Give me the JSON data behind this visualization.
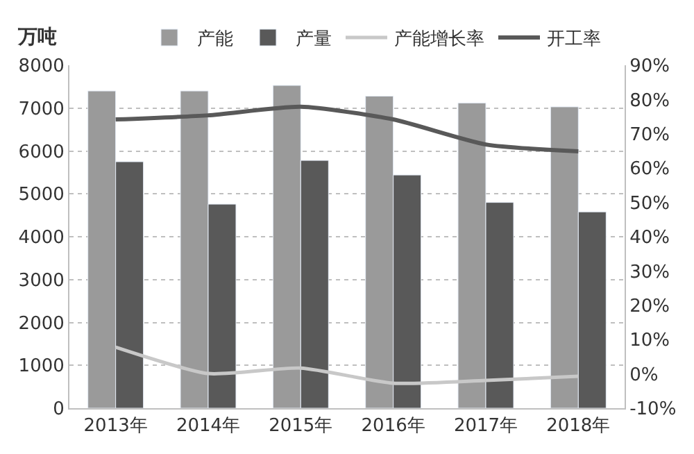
{
  "chart_data": {
    "type": "bar",
    "ylabel": "万吨",
    "categories": [
      "2013年",
      "2014年",
      "2015年",
      "2016年",
      "2017年",
      "2018年"
    ],
    "series": [
      {
        "name": "产能",
        "color": "#9a9a9a",
        "values": [
          7400,
          7400,
          7530,
          7280,
          7120,
          7030
        ]
      },
      {
        "name": "产量",
        "color": "#595959",
        "values": [
          5750,
          4760,
          5780,
          5440,
          4800,
          4580
        ]
      },
      {
        "name": "产能增长率",
        "type": "line",
        "axis": "y2",
        "color": "#c8c8c8",
        "values": [
          7.8,
          0.1,
          1.7,
          -2.7,
          -1.9,
          -0.7
        ]
      },
      {
        "name": "开工率",
        "type": "line",
        "axis": "y2",
        "color": "#595959",
        "values": [
          74.2,
          75.4,
          77.9,
          74.2,
          66.9,
          64.9
        ]
      }
    ],
    "ylim": [
      0,
      8000
    ],
    "yticks": [
      0,
      1000,
      2000,
      3000,
      4000,
      5000,
      6000,
      7000,
      8000
    ],
    "y2lim": [
      -10,
      90
    ],
    "y2ticks": [
      {
        "value": -10,
        "label": "-10%"
      },
      {
        "value": 0,
        "label": "0%"
      },
      {
        "value": 10,
        "label": "10%"
      },
      {
        "value": 20,
        "label": "20%"
      },
      {
        "value": 30,
        "label": "30%"
      },
      {
        "value": 40,
        "label": "40%"
      },
      {
        "value": 50,
        "label": "50%"
      },
      {
        "value": 60,
        "label": "60%"
      },
      {
        "value": 70,
        "label": "70%"
      },
      {
        "value": 80,
        "label": "80%"
      },
      {
        "value": 90,
        "label": "90%"
      }
    ],
    "grid": "y",
    "legend": "top",
    "line_style": "solid",
    "marker": "none"
  }
}
